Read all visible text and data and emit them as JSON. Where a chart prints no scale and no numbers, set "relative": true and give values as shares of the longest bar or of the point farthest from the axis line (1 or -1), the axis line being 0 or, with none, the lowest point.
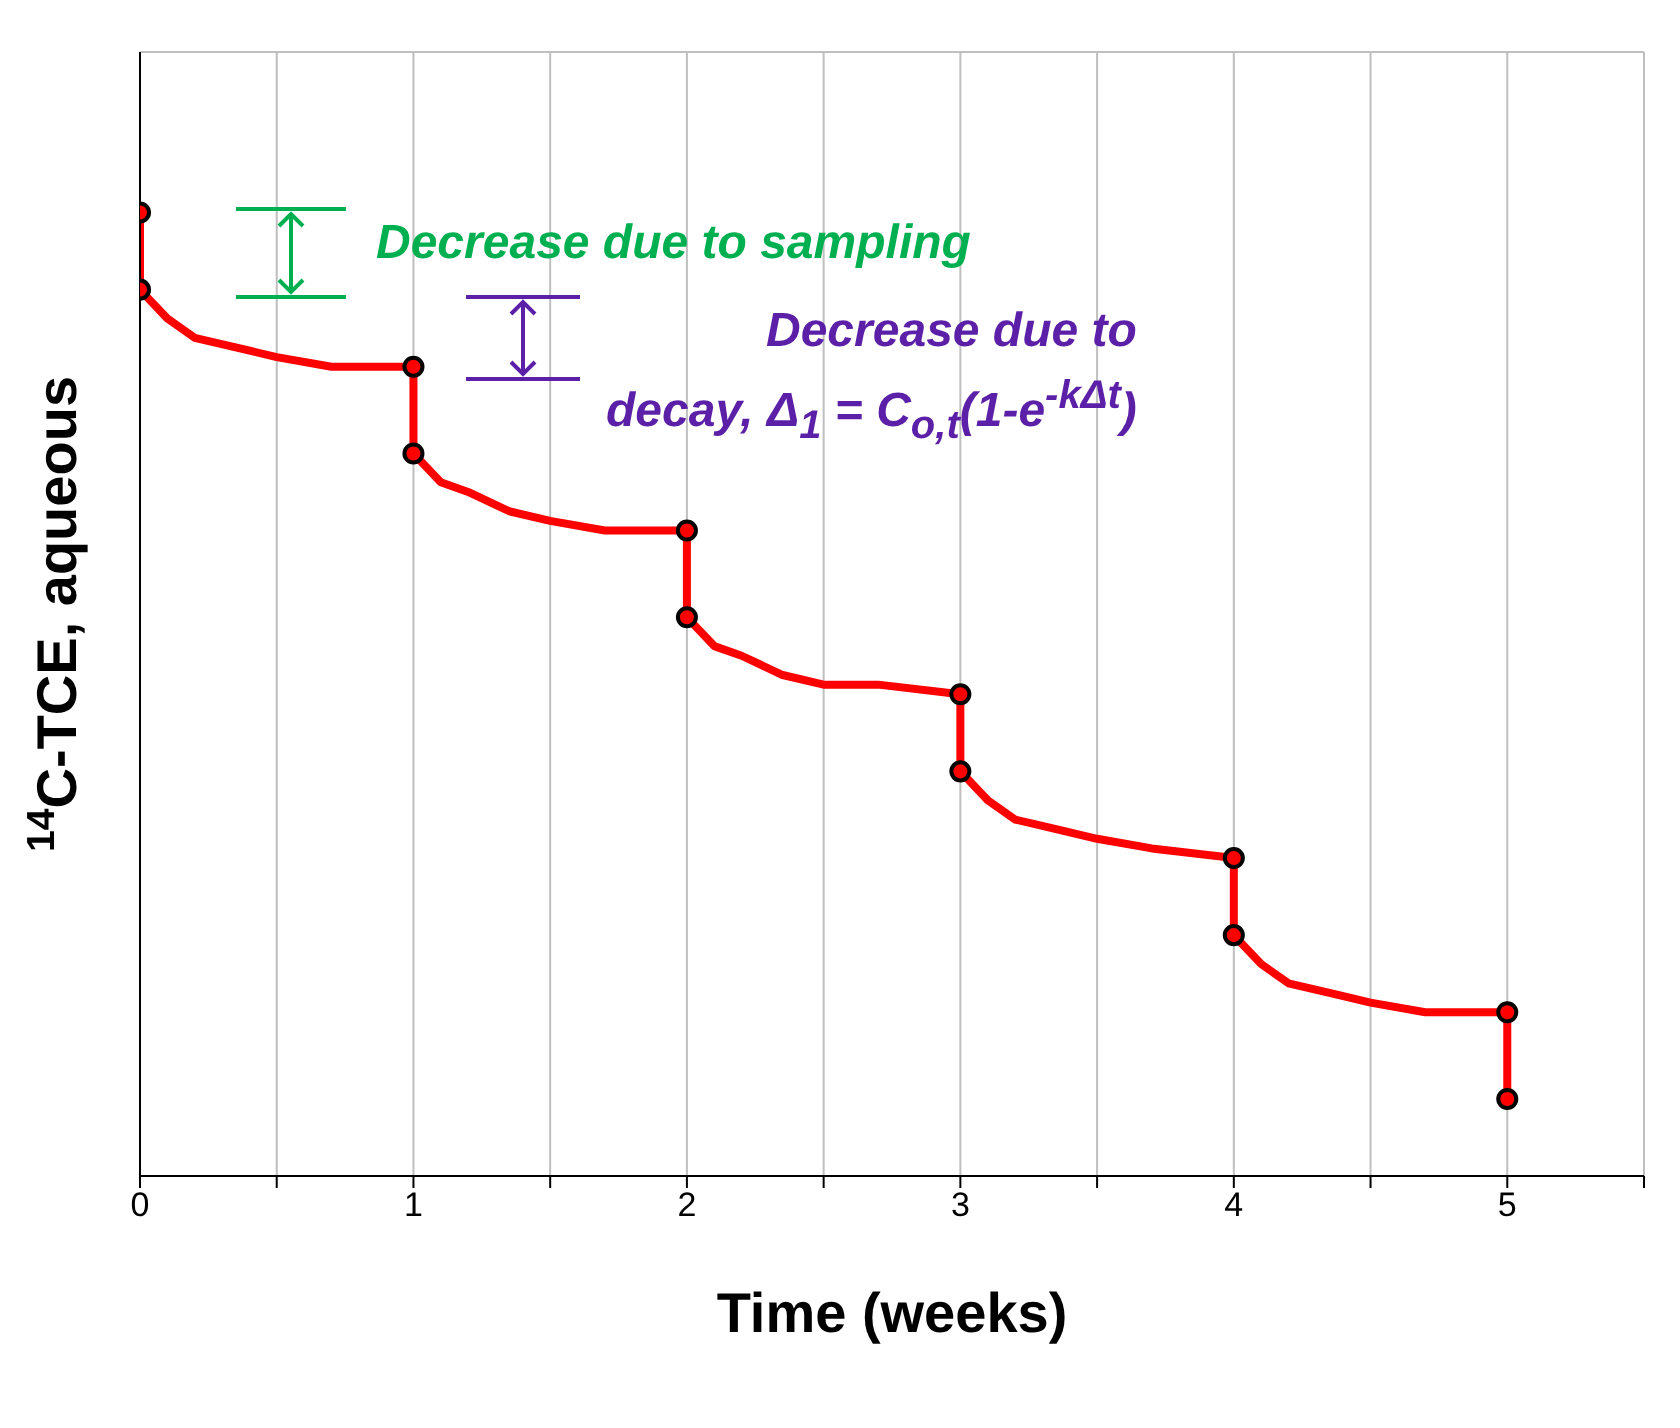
{
  "chart_data": {
    "type": "line",
    "relative": true,
    "xlabel": "Time (weeks)",
    "ylabel": "$^{14}$C-TCE, aqueous",
    "xlim": [
      0,
      5.5
    ],
    "xticks": [
      0,
      {
        "value": 0.5,
        "label": null
      },
      1,
      {
        "value": 1.5,
        "label": null
      },
      2,
      {
        "value": 2.5,
        "label": null
      },
      3,
      {
        "value": 3.5,
        "label": null
      },
      4,
      {
        "value": 4.5,
        "label": null
      },
      5,
      {
        "value": 5.5,
        "label": null
      }
    ],
    "grid": true,
    "annotations": [
      "Decrease due to sampling",
      "Decrease due to decay, Δ$_{1}$ = C$_{o,t}$(1-e$^{-kΔt}$)"
    ],
    "series": [
      {
        "color": "#ff0000",
        "marker": "none",
        "line_style": "solid",
        "x": [
          0,
          0,
          0.1,
          0.2,
          0.35,
          0.5,
          0.7,
          1,
          1,
          1.1,
          1.2,
          1.35,
          1.5,
          1.7,
          2,
          2,
          2.1,
          2.2,
          2.35,
          2.5,
          2.7,
          3,
          3,
          3.1,
          3.2,
          3.35,
          3.5,
          3.7,
          4,
          4,
          4.1,
          4.2,
          4.35,
          4.5,
          4.7,
          5,
          5
        ],
        "values": [
          1,
          0.92,
          0.89,
          0.87,
          0.86,
          0.85,
          0.84,
          0.84,
          0.75,
          0.72,
          0.71,
          0.69,
          0.68,
          0.67,
          0.67,
          0.58,
          0.55,
          0.54,
          0.52,
          0.51,
          0.51,
          0.5,
          0.42,
          0.39,
          0.37,
          0.36,
          0.35,
          0.34,
          0.33,
          0.25,
          0.22,
          0.2,
          0.19,
          0.18,
          0.17,
          0.17,
          0.08
        ]
      },
      {
        "type": "scatter",
        "color": "#ff0000",
        "marker": "circle",
        "x": [
          0,
          0,
          1,
          1,
          2,
          2,
          3,
          3,
          4,
          4,
          5,
          5
        ],
        "values": [
          1,
          0.92,
          0.84,
          0.75,
          0.67,
          0.58,
          0.5,
          0.42,
          0.33,
          0.25,
          0.17,
          0.08
        ]
      }
    ]
  }
}
